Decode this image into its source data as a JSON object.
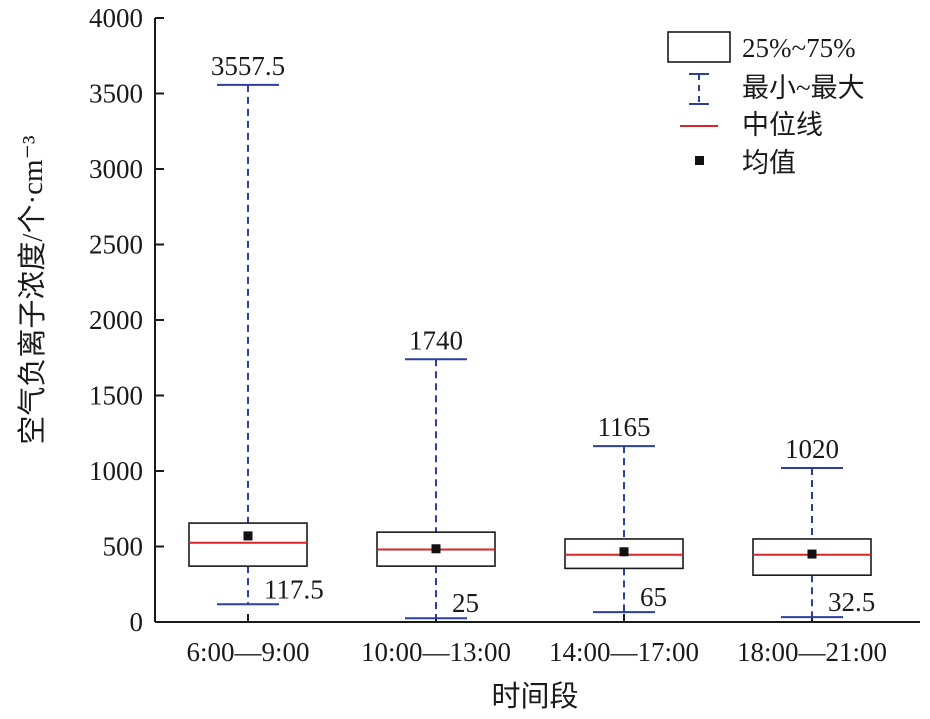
{
  "chart_data": {
    "type": "box",
    "xlabel": "时间段",
    "ylabel": "空气负离子浓度/个·cm⁻³",
    "ylim": [
      0,
      4000
    ],
    "yticks": [
      0,
      500,
      1000,
      1500,
      2000,
      2500,
      3000,
      3500,
      4000
    ],
    "categories": [
      "6:00—9:00",
      "10:00—13:00",
      "14:00—17:00",
      "18:00—21:00"
    ],
    "boxes": [
      {
        "min": 117.5,
        "q1": 370,
        "median": 525,
        "q3": 655,
        "max": 3557.5,
        "mean": 570,
        "min_label": "117.5",
        "max_label": "3557.5"
      },
      {
        "min": 25,
        "q1": 370,
        "median": 480,
        "q3": 595,
        "max": 1740,
        "mean": 485,
        "min_label": "25",
        "max_label": "1740"
      },
      {
        "min": 65,
        "q1": 355,
        "median": 445,
        "q3": 550,
        "max": 1165,
        "mean": 465,
        "min_label": "65",
        "max_label": "1165"
      },
      {
        "min": 32.5,
        "q1": 310,
        "median": 445,
        "q3": 550,
        "max": 1020,
        "mean": 450,
        "min_label": "32.5",
        "max_label": "1020"
      }
    ],
    "legend": {
      "position": "top-right",
      "items": [
        {
          "key": "box",
          "label": "25%~75%"
        },
        {
          "key": "whisker",
          "label": "最小~最大"
        },
        {
          "key": "median",
          "label": "中位线"
        },
        {
          "key": "mean",
          "label": "均值"
        }
      ]
    },
    "colors": {
      "box": "#1a1a1a",
      "whisker": "#2b3fa0",
      "median": "#d62728",
      "mean": "#111111",
      "axis": "#1a1a1a"
    }
  }
}
